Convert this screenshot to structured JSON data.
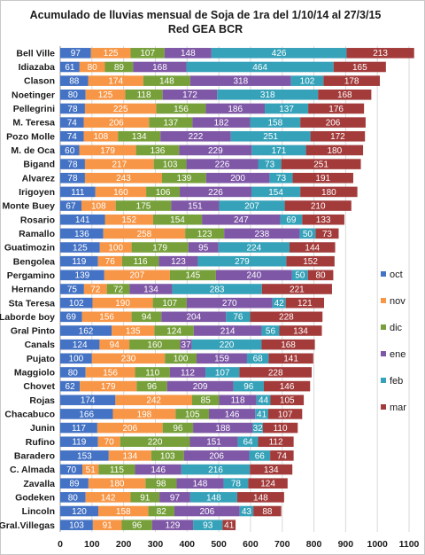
{
  "chart_data": {
    "type": "bar",
    "orientation": "horizontal",
    "stacked": true,
    "title": "Acumulado de lluvias mensual de Soja de 1ra del 1/10/14 al 27/3/15",
    "subtitle": "Red GEA BCR",
    "xlabel": "",
    "ylabel": "",
    "xlim": [
      0,
      1100
    ],
    "xticks": [
      0,
      100,
      200,
      300,
      400,
      500,
      600,
      700,
      800,
      900,
      1000,
      1100
    ],
    "grid": true,
    "legend_position": "right",
    "categories": [
      "Bell Ville",
      "Idiazaba",
      "Clason",
      "Noetinger",
      "Pellegrini",
      "M. Teresa",
      "Pozo Molle",
      "M. de Oca",
      "Bigand",
      "Alvarez",
      "Irigoyen",
      "Monte Buey",
      "Rosario",
      "Ramallo",
      "Guatimozin",
      "Bengolea",
      "Pergamino",
      "Hernando",
      "Sta Teresa",
      "Laborde boy",
      "Gral Pinto",
      "Canals",
      "Pujato",
      "Maggiolo",
      "Chovet",
      "Rojas",
      "Chacabuco",
      "Junin",
      "Rufino",
      "Baradero",
      "C. Almada",
      "Zavalla",
      "Godeken",
      "Lincoln",
      "Gral.Villegas"
    ],
    "series": [
      {
        "name": "oct",
        "color": "#4472c4",
        "values": [
          97,
          61,
          88,
          80,
          78,
          74,
          74,
          60,
          78,
          78,
          111,
          67,
          141,
          136,
          125,
          119,
          139,
          75,
          102,
          69,
          162,
          124,
          100,
          80,
          62,
          174,
          166,
          117,
          119,
          153,
          70,
          89,
          80,
          120,
          103
        ]
      },
      {
        "name": "nov",
        "color": "#f79646",
        "values": [
          125,
          80,
          174,
          125,
          225,
          206,
          108,
          179,
          217,
          243,
          160,
          108,
          152,
          258,
          100,
          76,
          207,
          72,
          190,
          156,
          135,
          94,
          230,
          156,
          179,
          242,
          198,
          206,
          70,
          134,
          51,
          180,
          142,
          158,
          91
        ]
      },
      {
        "name": "dic",
        "color": "#77a03b",
        "values": [
          107,
          89,
          148,
          118,
          156,
          137,
          134,
          136,
          103,
          139,
          106,
          175,
          154,
          123,
          179,
          116,
          145,
          72,
          107,
          94,
          124,
          160,
          100,
          110,
          96,
          85,
          105,
          96,
          220,
          103,
          115,
          98,
          91,
          82,
          96
        ]
      },
      {
        "name": "ene",
        "color": "#7e57a6",
        "values": [
          148,
          168,
          318,
          172,
          186,
          182,
          222,
          229,
          226,
          200,
          226,
          151,
          247,
          238,
          95,
          123,
          240,
          134,
          270,
          204,
          214,
          37,
          159,
          112,
          209,
          118,
          146,
          188,
          151,
          206,
          146,
          148,
          97,
          206,
          129
        ]
      },
      {
        "name": "feb",
        "color": "#35a2b9",
        "values": [
          426,
          464,
          102,
          318,
          137,
          158,
          251,
          171,
          73,
          73,
          154,
          207,
          69,
          50,
          224,
          279,
          50,
          283,
          42,
          76,
          56,
          220,
          68,
          107,
          96,
          44,
          41,
          32,
          64,
          66,
          216,
          78,
          148,
          43,
          93
        ]
      },
      {
        "name": "mar",
        "color": "#a33b3b",
        "values": [
          213,
          165,
          178,
          168,
          176,
          206,
          172,
          180,
          251,
          191,
          180,
          210,
          133,
          73,
          144,
          152,
          80,
          221,
          121,
          228,
          134,
          168,
          141,
          228,
          146,
          105,
          107,
          110,
          112,
          74,
          134,
          124,
          148,
          88,
          41
        ]
      }
    ]
  }
}
